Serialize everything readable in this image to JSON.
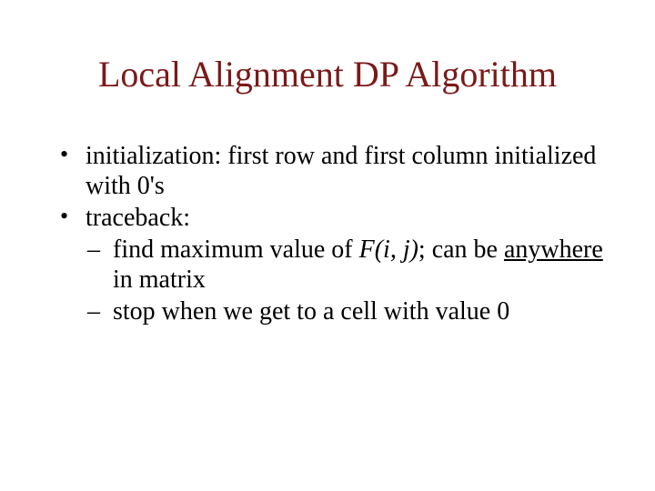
{
  "title": "Local Alignment DP Algorithm",
  "bullets": {
    "b1": "initialization: first row and first column initialized with 0's",
    "b2": "traceback:",
    "d1_a": "find maximum value of ",
    "d1_b": "F(i, j)",
    "d1_c": "; can be ",
    "d1_d": "anywhere",
    "d1_e": " in matrix",
    "d2": "stop when we get to a cell with value 0"
  },
  "colors": {
    "title": "#7a1a1a",
    "text": "#000000",
    "background": "#ffffff"
  },
  "fonts": {
    "title_size_pt": 40,
    "body_size_pt": 28,
    "family": "Times New Roman"
  }
}
